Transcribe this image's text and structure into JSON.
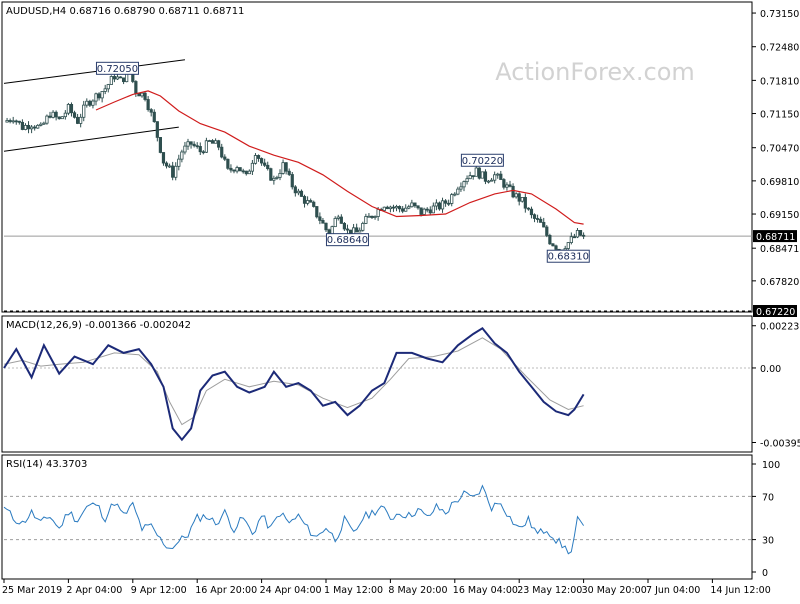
{
  "chart_data": [
    {
      "type": "candlestick",
      "header": "AUDUSD,H4  0.68716 0.68790 0.68711 0.68711",
      "watermark": "ActionForex.com",
      "colors": {
        "candle": "#2f4f4f",
        "ma": "#d01c1c",
        "channel": "#000000",
        "last_line": "#9a9a9a"
      },
      "y_ticks": [
        "0.73150",
        "0.72480",
        "0.71810",
        "0.71150",
        "0.70470",
        "0.69810",
        "0.69150",
        "0.68471",
        "0.67820"
      ],
      "ylim": [
        0.6722,
        0.7335
      ],
      "last_price": "0.68711",
      "support_line": "0.67220",
      "annotations": [
        {
          "label": "0.72050",
          "value": 0.7205
        },
        {
          "label": "0.68640",
          "value": 0.6864
        },
        {
          "label": "0.70220",
          "value": 0.7022
        },
        {
          "label": "0.68310",
          "value": 0.6831
        }
      ],
      "close_path": [
        {
          "t": 0,
          "v": 0.7098
        },
        {
          "t": 3,
          "v": 0.7108
        },
        {
          "t": 6,
          "v": 0.7088
        },
        {
          "t": 9,
          "v": 0.7095
        },
        {
          "t": 12,
          "v": 0.7085
        },
        {
          "t": 15,
          "v": 0.7115
        },
        {
          "t": 18,
          "v": 0.7102
        },
        {
          "t": 21,
          "v": 0.7125
        },
        {
          "t": 24,
          "v": 0.71
        },
        {
          "t": 27,
          "v": 0.7135
        },
        {
          "t": 30,
          "v": 0.715
        },
        {
          "t": 33,
          "v": 0.7165
        },
        {
          "t": 36,
          "v": 0.719
        },
        {
          "t": 38,
          "v": 0.718
        },
        {
          "t": 41,
          "v": 0.7198
        },
        {
          "t": 43,
          "v": 0.716
        },
        {
          "t": 46,
          "v": 0.715
        },
        {
          "t": 49,
          "v": 0.7095
        },
        {
          "t": 52,
          "v": 0.702
        },
        {
          "t": 55,
          "v": 0.6995
        },
        {
          "t": 58,
          "v": 0.704
        },
        {
          "t": 61,
          "v": 0.7055
        },
        {
          "t": 64,
          "v": 0.704
        },
        {
          "t": 67,
          "v": 0.7058
        },
        {
          "t": 70,
          "v": 0.705
        },
        {
          "t": 73,
          "v": 0.7
        },
        {
          "t": 76,
          "v": 0.7012
        },
        {
          "t": 79,
          "v": 0.6988
        },
        {
          "t": 82,
          "v": 0.704
        },
        {
          "t": 85,
          "v": 0.7005
        },
        {
          "t": 88,
          "v": 0.6982
        },
        {
          "t": 91,
          "v": 0.7012
        },
        {
          "t": 94,
          "v": 0.6972
        },
        {
          "t": 97,
          "v": 0.6948
        },
        {
          "t": 100,
          "v": 0.6932
        },
        {
          "t": 103,
          "v": 0.6905
        },
        {
          "t": 106,
          "v": 0.6874
        },
        {
          "t": 109,
          "v": 0.6918
        },
        {
          "t": 112,
          "v": 0.688
        },
        {
          "t": 115,
          "v": 0.6878
        },
        {
          "t": 118,
          "v": 0.6902
        },
        {
          "t": 121,
          "v": 0.6918
        },
        {
          "t": 124,
          "v": 0.6935
        },
        {
          "t": 127,
          "v": 0.6928
        },
        {
          "t": 130,
          "v": 0.6925
        },
        {
          "t": 133,
          "v": 0.6932
        },
        {
          "t": 136,
          "v": 0.6918
        },
        {
          "t": 139,
          "v": 0.6926
        },
        {
          "t": 142,
          "v": 0.693
        },
        {
          "t": 145,
          "v": 0.6942
        },
        {
          "t": 148,
          "v": 0.6972
        },
        {
          "t": 151,
          "v": 0.699
        },
        {
          "t": 154,
          "v": 0.7
        },
        {
          "t": 157,
          "v": 0.6985
        },
        {
          "t": 160,
          "v": 0.6992
        },
        {
          "t": 163,
          "v": 0.6975
        },
        {
          "t": 166,
          "v": 0.6955
        },
        {
          "t": 169,
          "v": 0.694
        },
        {
          "t": 172,
          "v": 0.691
        },
        {
          "t": 175,
          "v": 0.6895
        },
        {
          "t": 178,
          "v": 0.6862
        },
        {
          "t": 181,
          "v": 0.6845
        },
        {
          "t": 184,
          "v": 0.6858
        },
        {
          "t": 187,
          "v": 0.6875
        },
        {
          "t": 189,
          "v": 0.6871
        }
      ],
      "ma_path": [
        {
          "t": 30,
          "v": 0.7122
        },
        {
          "t": 36,
          "v": 0.7138
        },
        {
          "t": 42,
          "v": 0.7153
        },
        {
          "t": 47,
          "v": 0.716
        },
        {
          "t": 51,
          "v": 0.715
        },
        {
          "t": 57,
          "v": 0.712
        },
        {
          "t": 64,
          "v": 0.7095
        },
        {
          "t": 72,
          "v": 0.7078
        },
        {
          "t": 80,
          "v": 0.705
        },
        {
          "t": 88,
          "v": 0.7032
        },
        {
          "t": 96,
          "v": 0.7018
        },
        {
          "t": 104,
          "v": 0.6993
        },
        {
          "t": 112,
          "v": 0.696
        },
        {
          "t": 120,
          "v": 0.693
        },
        {
          "t": 128,
          "v": 0.691
        },
        {
          "t": 136,
          "v": 0.6912
        },
        {
          "t": 144,
          "v": 0.6915
        },
        {
          "t": 152,
          "v": 0.6938
        },
        {
          "t": 160,
          "v": 0.6955
        },
        {
          "t": 166,
          "v": 0.6962
        },
        {
          "t": 172,
          "v": 0.6955
        },
        {
          "t": 180,
          "v": 0.6925
        },
        {
          "t": 186,
          "v": 0.6898
        },
        {
          "t": 189,
          "v": 0.6895
        }
      ],
      "channel": {
        "upper": [
          {
            "t": 0,
            "v": 0.7175
          },
          {
            "t": 59,
            "v": 0.7222
          }
        ],
        "lower": [
          {
            "t": 0,
            "v": 0.704
          },
          {
            "t": 57,
            "v": 0.7088
          }
        ]
      }
    },
    {
      "type": "line",
      "header": "MACD(12,26,9) -0.001366 -0.002042",
      "y_ticks": [
        "0.002237",
        "0.00",
        "-0.00395"
      ],
      "ylim": [
        -0.0044,
        0.0027
      ],
      "macd": [
        {
          "t": 0,
          "v": 0.0
        },
        {
          "t": 4,
          "v": 0.001
        },
        {
          "t": 9,
          "v": -0.0005
        },
        {
          "t": 13,
          "v": 0.0012
        },
        {
          "t": 18,
          "v": -0.0003
        },
        {
          "t": 23,
          "v": 0.0006
        },
        {
          "t": 29,
          "v": 0.0002
        },
        {
          "t": 34,
          "v": 0.0012
        },
        {
          "t": 39,
          "v": 0.0008
        },
        {
          "t": 44,
          "v": 0.001
        },
        {
          "t": 48,
          "v": 0.0002
        },
        {
          "t": 52,
          "v": -0.001
        },
        {
          "t": 55,
          "v": -0.0032
        },
        {
          "t": 58,
          "v": -0.0038
        },
        {
          "t": 61,
          "v": -0.0032
        },
        {
          "t": 64,
          "v": -0.0012
        },
        {
          "t": 68,
          "v": -0.0004
        },
        {
          "t": 72,
          "v": -0.0002
        },
        {
          "t": 76,
          "v": -0.001
        },
        {
          "t": 80,
          "v": -0.0013
        },
        {
          "t": 85,
          "v": -0.001
        },
        {
          "t": 88,
          "v": -0.0002
        },
        {
          "t": 92,
          "v": -0.001
        },
        {
          "t": 96,
          "v": -0.0008
        },
        {
          "t": 100,
          "v": -0.0012
        },
        {
          "t": 104,
          "v": -0.002
        },
        {
          "t": 108,
          "v": -0.0018
        },
        {
          "t": 112,
          "v": -0.0025
        },
        {
          "t": 116,
          "v": -0.002
        },
        {
          "t": 120,
          "v": -0.0012
        },
        {
          "t": 124,
          "v": -0.0008
        },
        {
          "t": 128,
          "v": 0.0008
        },
        {
          "t": 133,
          "v": 0.0008
        },
        {
          "t": 138,
          "v": 0.0005
        },
        {
          "t": 143,
          "v": 0.0003
        },
        {
          "t": 148,
          "v": 0.0012
        },
        {
          "t": 153,
          "v": 0.0018
        },
        {
          "t": 156,
          "v": 0.0021
        },
        {
          "t": 160,
          "v": 0.0013
        },
        {
          "t": 164,
          "v": 0.0008
        },
        {
          "t": 168,
          "v": -0.0002
        },
        {
          "t": 172,
          "v": -0.001
        },
        {
          "t": 176,
          "v": -0.0018
        },
        {
          "t": 180,
          "v": -0.0023
        },
        {
          "t": 184,
          "v": -0.0025
        },
        {
          "t": 186,
          "v": -0.0022
        },
        {
          "t": 189,
          "v": -0.0014
        }
      ],
      "signal": [
        {
          "t": 0,
          "v": 0.0002
        },
        {
          "t": 6,
          "v": 0.0004
        },
        {
          "t": 12,
          "v": 0.0001
        },
        {
          "t": 18,
          "v": 0.0002
        },
        {
          "t": 26,
          "v": 0.0003
        },
        {
          "t": 36,
          "v": 0.0008
        },
        {
          "t": 44,
          "v": 0.0007
        },
        {
          "t": 50,
          "v": -0.0002
        },
        {
          "t": 54,
          "v": -0.0018
        },
        {
          "t": 58,
          "v": -0.003
        },
        {
          "t": 62,
          "v": -0.0026
        },
        {
          "t": 66,
          "v": -0.0012
        },
        {
          "t": 72,
          "v": -0.0006
        },
        {
          "t": 80,
          "v": -0.001
        },
        {
          "t": 88,
          "v": -0.0007
        },
        {
          "t": 96,
          "v": -0.0009
        },
        {
          "t": 104,
          "v": -0.0016
        },
        {
          "t": 112,
          "v": -0.0021
        },
        {
          "t": 120,
          "v": -0.0016
        },
        {
          "t": 126,
          "v": -0.0006
        },
        {
          "t": 132,
          "v": 0.0005
        },
        {
          "t": 140,
          "v": 0.0006
        },
        {
          "t": 148,
          "v": 0.0009
        },
        {
          "t": 156,
          "v": 0.0016
        },
        {
          "t": 162,
          "v": 0.001
        },
        {
          "t": 170,
          "v": -0.0004
        },
        {
          "t": 178,
          "v": -0.0017
        },
        {
          "t": 184,
          "v": -0.0022
        },
        {
          "t": 189,
          "v": -0.002
        }
      ]
    },
    {
      "type": "line",
      "header": "RSI(14) 43.3703",
      "y_ticks": [
        "100",
        "70",
        "30",
        "0"
      ],
      "ylim": [
        0,
        100
      ],
      "levels": [
        70,
        30
      ],
      "rsi": [
        {
          "t": 0,
          "v": 60
        },
        {
          "t": 3,
          "v": 50
        },
        {
          "t": 6,
          "v": 45
        },
        {
          "t": 9,
          "v": 55
        },
        {
          "t": 12,
          "v": 45
        },
        {
          "t": 15,
          "v": 52
        },
        {
          "t": 18,
          "v": 40
        },
        {
          "t": 21,
          "v": 56
        },
        {
          "t": 24,
          "v": 48
        },
        {
          "t": 27,
          "v": 60
        },
        {
          "t": 30,
          "v": 63
        },
        {
          "t": 33,
          "v": 50
        },
        {
          "t": 36,
          "v": 65
        },
        {
          "t": 39,
          "v": 52
        },
        {
          "t": 42,
          "v": 62
        },
        {
          "t": 45,
          "v": 40
        },
        {
          "t": 48,
          "v": 42
        },
        {
          "t": 51,
          "v": 30
        },
        {
          "t": 54,
          "v": 22
        },
        {
          "t": 57,
          "v": 28
        },
        {
          "t": 60,
          "v": 35
        },
        {
          "t": 63,
          "v": 50
        },
        {
          "t": 66,
          "v": 52
        },
        {
          "t": 69,
          "v": 45
        },
        {
          "t": 72,
          "v": 55
        },
        {
          "t": 75,
          "v": 40
        },
        {
          "t": 78,
          "v": 50
        },
        {
          "t": 81,
          "v": 35
        },
        {
          "t": 84,
          "v": 52
        },
        {
          "t": 87,
          "v": 40
        },
        {
          "t": 90,
          "v": 55
        },
        {
          "t": 93,
          "v": 45
        },
        {
          "t": 96,
          "v": 52
        },
        {
          "t": 99,
          "v": 40
        },
        {
          "t": 102,
          "v": 32
        },
        {
          "t": 105,
          "v": 42
        },
        {
          "t": 108,
          "v": 30
        },
        {
          "t": 111,
          "v": 48
        },
        {
          "t": 114,
          "v": 35
        },
        {
          "t": 117,
          "v": 50
        },
        {
          "t": 120,
          "v": 55
        },
        {
          "t": 123,
          "v": 60
        },
        {
          "t": 126,
          "v": 50
        },
        {
          "t": 129,
          "v": 55
        },
        {
          "t": 132,
          "v": 52
        },
        {
          "t": 135,
          "v": 58
        },
        {
          "t": 138,
          "v": 50
        },
        {
          "t": 141,
          "v": 60
        },
        {
          "t": 144,
          "v": 55
        },
        {
          "t": 147,
          "v": 65
        },
        {
          "t": 150,
          "v": 72
        },
        {
          "t": 153,
          "v": 68
        },
        {
          "t": 156,
          "v": 78
        },
        {
          "t": 159,
          "v": 60
        },
        {
          "t": 162,
          "v": 65
        },
        {
          "t": 165,
          "v": 50
        },
        {
          "t": 168,
          "v": 40
        },
        {
          "t": 171,
          "v": 48
        },
        {
          "t": 174,
          "v": 35
        },
        {
          "t": 177,
          "v": 40
        },
        {
          "t": 180,
          "v": 30
        },
        {
          "t": 183,
          "v": 22
        },
        {
          "t": 185,
          "v": 18
        },
        {
          "t": 187,
          "v": 48
        },
        {
          "t": 189,
          "v": 43
        }
      ]
    }
  ],
  "x_ticks": [
    {
      "label": "25 Mar 2019",
      "t": 0
    },
    {
      "label": "2 Apr 04:00",
      "t": 21
    },
    {
      "label": "9 Apr 12:00",
      "t": 42
    },
    {
      "label": "16 Apr 20:00",
      "t": 63
    },
    {
      "label": "24 Apr 04:00",
      "t": 84
    },
    {
      "label": "1 May 12:00",
      "t": 105
    },
    {
      "label": "8 May 20:00",
      "t": 126
    },
    {
      "label": "16 May 04:00",
      "t": 147
    },
    {
      "label": "23 May 12:00",
      "t": 168
    },
    {
      "label": "30 May 20:00",
      "t": 189
    },
    {
      "label": "7 Jun 04:00",
      "t": 210
    },
    {
      "label": "14 Jun 12:00",
      "t": 231
    }
  ]
}
